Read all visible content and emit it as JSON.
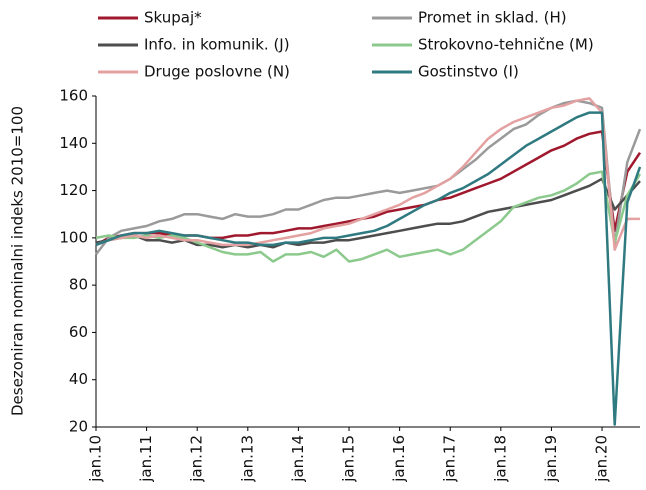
{
  "chart_data": {
    "type": "line",
    "y_label": "Desezoniran nominalni indeks 2010=100",
    "categories": [
      "jan.10",
      null,
      null,
      null,
      "jan.11",
      null,
      null,
      null,
      "jan.12",
      null,
      null,
      null,
      "jan.13",
      null,
      null,
      null,
      "jan.14",
      null,
      null,
      null,
      "jan.15",
      null,
      null,
      null,
      "jan.16",
      null,
      null,
      null,
      "jan.17",
      null,
      null,
      null,
      "jan.18",
      null,
      null,
      null,
      "jan.19",
      null,
      null,
      null,
      "jan.20",
      null,
      null,
      null
    ],
    "ylim": [
      20,
      160
    ],
    "yticks": [
      20,
      40,
      60,
      80,
      100,
      120,
      140,
      160
    ],
    "series": [
      {
        "name": "Skupaj*",
        "color": "#a0182d",
        "values": [
          97,
          100,
          101,
          102,
          102,
          102,
          101,
          101,
          101,
          100,
          100,
          101,
          101,
          102,
          102,
          103,
          104,
          104,
          105,
          106,
          107,
          108,
          109,
          111,
          112,
          113,
          114,
          116,
          117,
          119,
          121,
          123,
          125,
          128,
          131,
          134,
          137,
          139,
          142,
          144,
          145,
          103,
          128,
          136
        ]
      },
      {
        "name": "Promet in sklad. (H)",
        "color": "#9a9a9a",
        "values": [
          93,
          100,
          103,
          104,
          105,
          107,
          108,
          110,
          110,
          109,
          108,
          110,
          109,
          109,
          110,
          112,
          112,
          114,
          116,
          117,
          117,
          118,
          119,
          120,
          119,
          120,
          121,
          122,
          125,
          129,
          133,
          138,
          142,
          146,
          148,
          152,
          155,
          157,
          158,
          157,
          155,
          97,
          132,
          146
        ]
      },
      {
        "name": "Info. in komunik. (J)",
        "color": "#4d4d4d",
        "values": [
          98,
          99,
          100,
          101,
          99,
          99,
          98,
          99,
          97,
          97,
          96,
          97,
          96,
          97,
          96,
          98,
          97,
          98,
          98,
          99,
          99,
          100,
          101,
          102,
          103,
          104,
          105,
          106,
          106,
          107,
          109,
          111,
          112,
          113,
          114,
          115,
          116,
          118,
          120,
          122,
          125,
          112,
          118,
          124
        ]
      },
      {
        "name": "Strokovno-tehnične (M)",
        "color": "#8cc98c",
        "values": [
          100,
          101,
          100,
          100,
          101,
          100,
          101,
          100,
          98,
          96,
          94,
          93,
          93,
          94,
          90,
          93,
          93,
          94,
          92,
          95,
          90,
          91,
          93,
          95,
          92,
          93,
          94,
          95,
          93,
          95,
          99,
          103,
          107,
          113,
          115,
          117,
          118,
          120,
          123,
          127,
          128,
          98,
          118,
          127
        ]
      },
      {
        "name": "Druge poslovne (N)",
        "color": "#e3a1a1",
        "values": [
          97,
          99,
          100,
          101,
          100,
          101,
          100,
          99,
          99,
          98,
          97,
          97,
          97,
          98,
          99,
          100,
          101,
          102,
          104,
          105,
          106,
          108,
          110,
          112,
          114,
          117,
          119,
          122,
          125,
          130,
          136,
          142,
          146,
          149,
          151,
          153,
          155,
          156,
          158,
          159,
          153,
          95,
          108,
          108
        ]
      },
      {
        "name": "Gostinstvo (I)",
        "color": "#2f7a80",
        "values": [
          97,
          99,
          101,
          102,
          102,
          103,
          102,
          101,
          101,
          100,
          99,
          98,
          98,
          97,
          97,
          98,
          98,
          99,
          100,
          100,
          101,
          102,
          103,
          105,
          108,
          111,
          114,
          116,
          119,
          121,
          124,
          127,
          131,
          135,
          139,
          142,
          145,
          148,
          151,
          153,
          153,
          21,
          115,
          130
        ]
      }
    ]
  }
}
